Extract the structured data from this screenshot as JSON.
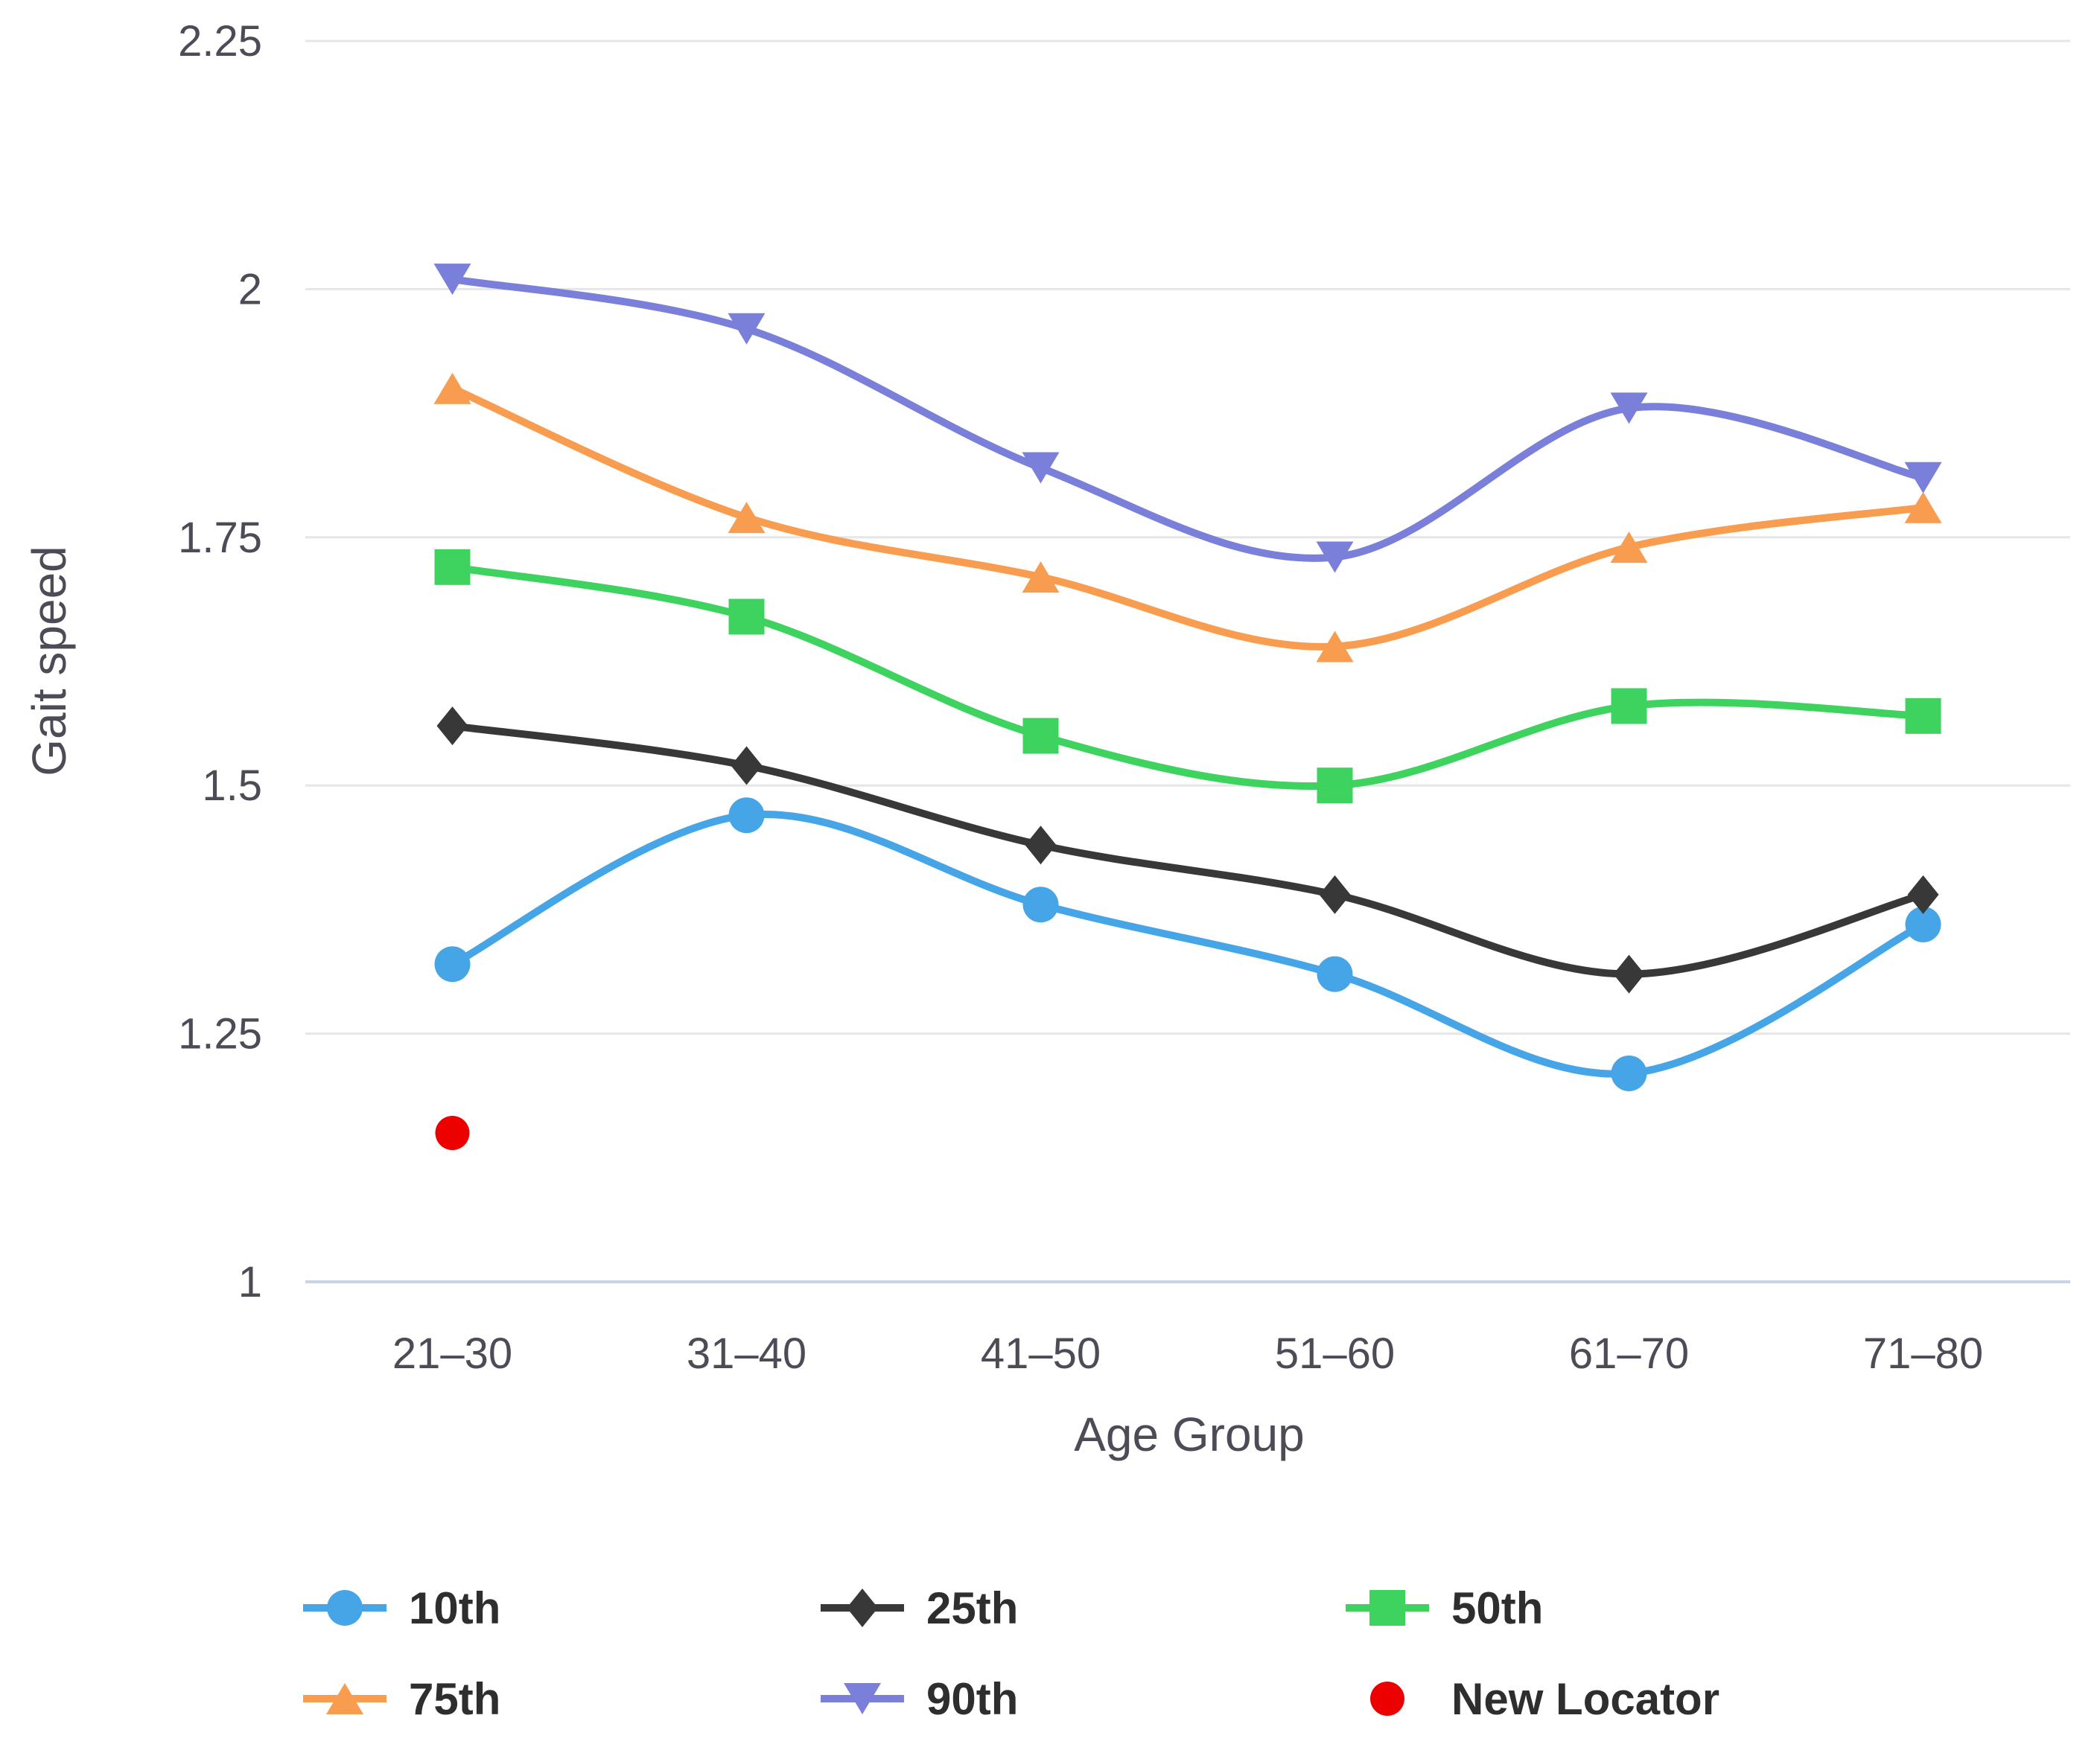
{
  "chart_data": {
    "type": "line",
    "title": "",
    "xlabel": "Age Group",
    "ylabel": "Gait speed",
    "categories": [
      "21–30",
      "31–40",
      "41–50",
      "51–60",
      "61–70",
      "71–80"
    ],
    "y_ticks": [
      1,
      1.25,
      1.5,
      1.75,
      2,
      2.25
    ],
    "y_tick_labels": [
      "1",
      "1.25",
      "1.5",
      "1.75",
      "2",
      "2.25"
    ],
    "ylim": [
      1,
      2.25
    ],
    "grid": true,
    "legend_position": "bottom",
    "series": [
      {
        "name": "10th",
        "color": "#45a5e6",
        "marker": "circle",
        "values": [
          1.32,
          1.47,
          1.38,
          1.31,
          1.21,
          1.36
        ]
      },
      {
        "name": "25th",
        "color": "#383838",
        "marker": "diamond",
        "values": [
          1.56,
          1.52,
          1.44,
          1.39,
          1.31,
          1.39
        ]
      },
      {
        "name": "50th",
        "color": "#3ed35f",
        "marker": "square",
        "values": [
          1.72,
          1.67,
          1.55,
          1.5,
          1.58,
          1.57
        ]
      },
      {
        "name": "75th",
        "color": "#f89c4f",
        "marker": "triangle-up",
        "values": [
          1.9,
          1.77,
          1.71,
          1.64,
          1.74,
          1.78
        ]
      },
      {
        "name": "90th",
        "color": "#7a7fda",
        "marker": "triangle-down",
        "values": [
          2.01,
          1.96,
          1.82,
          1.73,
          1.88,
          1.81
        ]
      }
    ],
    "point_series": [
      {
        "name": "New Locator",
        "color": "#ec0000",
        "marker": "dot",
        "category": "21–30",
        "value": 1.15
      }
    ],
    "style": {
      "gridline_color": "#e6e6e6",
      "baseline_color": "#c9d4ea",
      "tick_label_color": "#4c4c56",
      "legend_text_color": "#2e2e2e"
    }
  }
}
